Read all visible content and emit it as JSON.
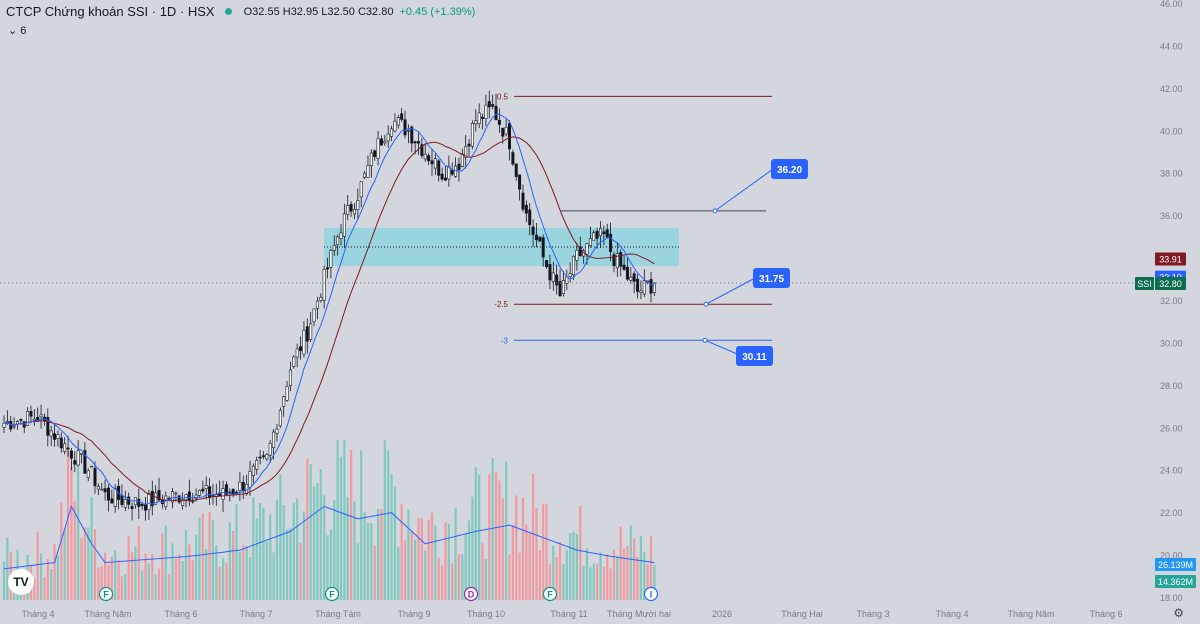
{
  "header": {
    "title": "CTCP Chứng khoán SSI · 1D · HSX",
    "status_color": "#26a69a",
    "ohlc": "O32.55 H32.95 L32.50 C32.80",
    "change": "+0.45 (+1.39%)",
    "indicator_toggle": "6"
  },
  "chart_data": {
    "type": "candlestick",
    "symbol": "SSI",
    "y_ticks": [
      "18.00",
      "20.00",
      "22.00",
      "24.00",
      "26.00",
      "28.00",
      "30.00",
      "32.00",
      "34.00",
      "36.00",
      "38.00",
      "40.00",
      "42.00",
      "44.00",
      "46.00"
    ],
    "ylim": [
      18,
      46
    ],
    "x_ticks": [
      "Tháng 4",
      "Tháng Năm",
      "Tháng 6",
      "Tháng 7",
      "Tháng Tám",
      "Tháng 9",
      "Tháng 10",
      "Tháng 11",
      "Tháng Mười hai",
      "2026",
      "Tháng Hai",
      "Tháng 3",
      "Tháng 4",
      "Tháng Năm",
      "Tháng 6"
    ],
    "price_control": [
      [
        0,
        26.2
      ],
      [
        10,
        26.5
      ],
      [
        25,
        24.0
      ],
      [
        30,
        22.8
      ],
      [
        40,
        22.4
      ],
      [
        55,
        22.9
      ],
      [
        65,
        22.8
      ],
      [
        70,
        23.2
      ],
      [
        78,
        24.5
      ],
      [
        85,
        28.8
      ],
      [
        90,
        30.5
      ],
      [
        95,
        33.0
      ],
      [
        100,
        35.5
      ],
      [
        105,
        37.0
      ],
      [
        110,
        39.0
      ],
      [
        115,
        40.5
      ],
      [
        120,
        40.0
      ],
      [
        125,
        39.0
      ],
      [
        130,
        38.0
      ],
      [
        135,
        38.5
      ],
      [
        140,
        40.5
      ],
      [
        145,
        41.0
      ],
      [
        150,
        39.5
      ],
      [
        155,
        36.0
      ],
      [
        160,
        34.0
      ],
      [
        165,
        32.2
      ],
      [
        170,
        34.0
      ],
      [
        175,
        34.8
      ],
      [
        178,
        35.0
      ],
      [
        181,
        34.0
      ],
      [
        184,
        33.3
      ],
      [
        188,
        32.4
      ],
      [
        193,
        32.8
      ]
    ],
    "volume_control": [
      [
        0,
        0.25
      ],
      [
        15,
        0.3
      ],
      [
        20,
        0.75
      ],
      [
        26,
        0.45
      ],
      [
        30,
        0.3
      ],
      [
        55,
        0.35
      ],
      [
        70,
        0.4
      ],
      [
        85,
        0.55
      ],
      [
        95,
        0.75
      ],
      [
        105,
        0.65
      ],
      [
        115,
        0.7
      ],
      [
        125,
        0.45
      ],
      [
        140,
        0.55
      ],
      [
        150,
        0.6
      ],
      [
        160,
        0.5
      ],
      [
        170,
        0.4
      ],
      [
        180,
        0.35
      ],
      [
        193,
        0.3
      ]
    ],
    "price_labels": {
      "ssi": "SSI",
      "last": "32.80",
      "ma_fast": "33.10",
      "ma_slow": "33.91",
      "last_color": "#0b6e4f",
      "ma_fast_color": "#2962ff",
      "ma_slow_color": "#801922"
    },
    "volume_labels": {
      "vol_ma": "26.139M",
      "vol": "14.362M",
      "vol_ma_color": "#2196f3",
      "vol_color": "#26a69a"
    },
    "zone": {
      "from": 33.6,
      "to": 35.4
    },
    "fib_levels": [
      {
        "label": "0.5",
        "value": 41.6
      },
      {
        "label": "-2.5",
        "value": 31.8
      },
      {
        "label": "-3",
        "value": 30.1
      }
    ],
    "horizontal_line": 36.2,
    "callouts": [
      "36.20",
      "31.75",
      "30.11"
    ],
    "events": [
      "F",
      "F",
      "D",
      "F",
      "I"
    ],
    "colors": {
      "up": "#26a69a",
      "down": "#131722",
      "vol_up": "#7fc9bf",
      "vol_down": "#f19aa0",
      "accent": "#2962ff",
      "zone": "#8fd3df"
    }
  }
}
